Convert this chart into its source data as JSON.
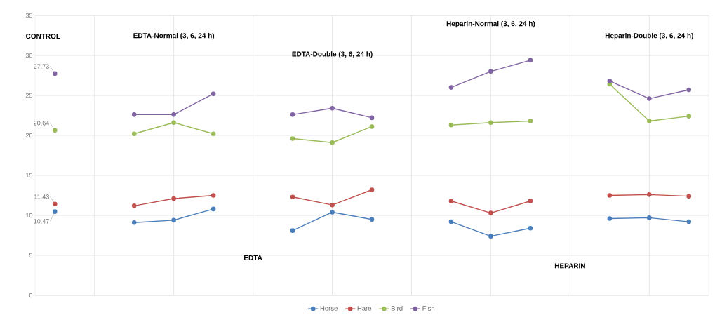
{
  "chart_data": {
    "type": "line",
    "categories": [
      null,
      null,
      null,
      null,
      null,
      null,
      null,
      null,
      null,
      null,
      null,
      null,
      null,
      null,
      null,
      null,
      null
    ],
    "series": [
      {
        "name": "Horse",
        "color": "#4a7ebb",
        "values": [
          10.47,
          null,
          9.1,
          9.4,
          10.8,
          null,
          8.1,
          10.4,
          9.5,
          null,
          9.2,
          7.4,
          8.4,
          null,
          9.6,
          9.7,
          9.2
        ],
        "value_labels": [
          "10.47",
          null,
          null,
          null,
          null,
          null,
          null,
          null,
          null,
          null,
          null,
          null,
          null,
          null,
          null,
          null,
          null
        ]
      },
      {
        "name": "Hare",
        "color": "#c0504d",
        "values": [
          11.43,
          null,
          11.2,
          12.1,
          12.5,
          null,
          12.3,
          11.3,
          13.2,
          null,
          11.8,
          10.3,
          11.8,
          null,
          12.5,
          12.6,
          12.4
        ],
        "value_labels": [
          "11.43",
          null,
          null,
          null,
          null,
          null,
          null,
          null,
          null,
          null,
          null,
          null,
          null,
          null,
          null,
          null,
          null
        ]
      },
      {
        "name": "Bird",
        "color": "#9bbb59",
        "values": [
          20.64,
          null,
          20.2,
          21.6,
          20.2,
          null,
          19.6,
          19.1,
          21.1,
          null,
          21.3,
          21.6,
          21.8,
          null,
          26.4,
          21.8,
          22.4
        ],
        "value_labels": [
          "20.64",
          null,
          null,
          null,
          null,
          null,
          null,
          null,
          null,
          null,
          null,
          null,
          null,
          null,
          null,
          null,
          null
        ]
      },
      {
        "name": "Fish",
        "color": "#8064a2",
        "values": [
          27.73,
          null,
          22.6,
          22.6,
          25.2,
          null,
          22.6,
          23.4,
          22.2,
          null,
          26.0,
          28.0,
          29.4,
          null,
          26.8,
          24.6,
          25.7
        ],
        "value_labels": [
          "27.73",
          null,
          null,
          null,
          null,
          null,
          null,
          null,
          null,
          null,
          null,
          null,
          null,
          null,
          null,
          null,
          null
        ]
      }
    ],
    "ylim": [
      0,
      35
    ],
    "yticks": [
      0,
      5,
      10,
      15,
      20,
      25,
      30,
      35
    ],
    "grid": true,
    "legend": "bottom",
    "marker": "circle",
    "annotations": [
      "CONTROL",
      "EDTA-Normal (3, 6, 24 h)",
      "EDTA-Double (3, 6, 24 h)",
      "Heparin-Normal (3, 6, 24 h)",
      "Heparin-Double (3, 6, 24 h)",
      "EDTA",
      "HEPARIN"
    ]
  }
}
